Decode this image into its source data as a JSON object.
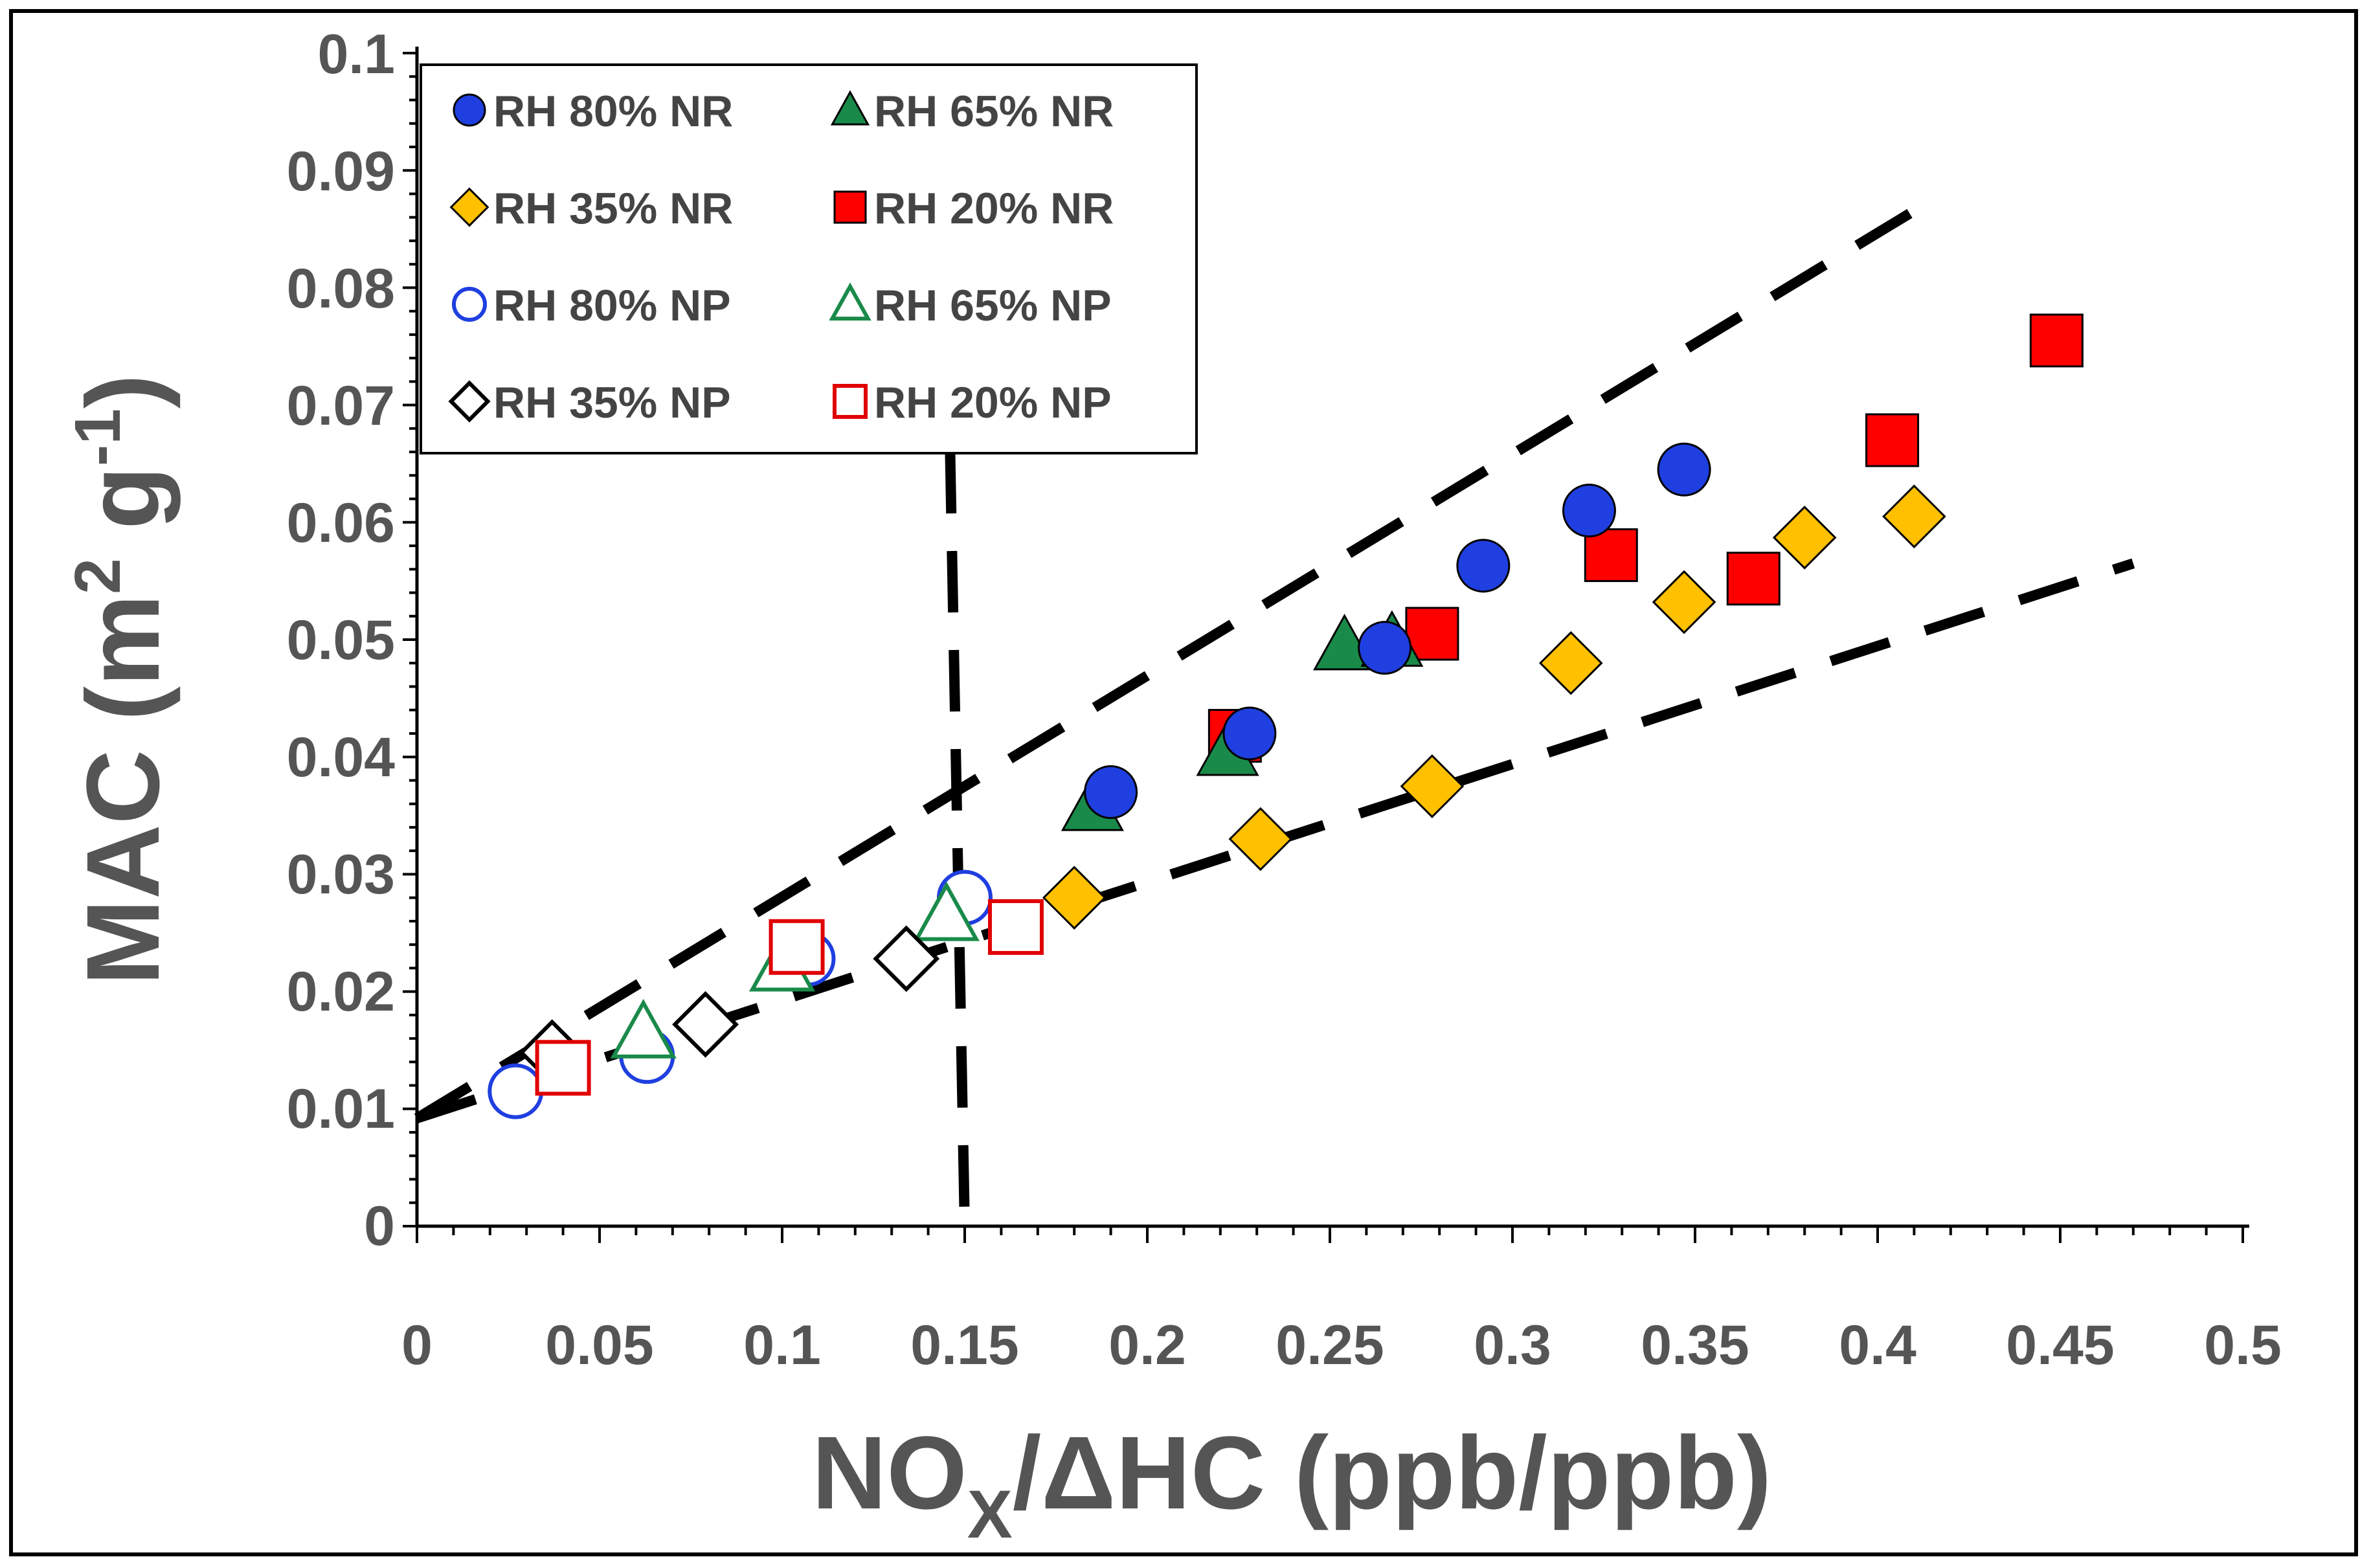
{
  "chart_data": {
    "type": "scatter",
    "title": "",
    "xlabel": "NOX/ΔHC  (ppb/ppb)",
    "xlabel_parts": {
      "main": "NO",
      "sub": "X",
      "rest": "/ΔHC  (ppb/ppb)"
    },
    "ylabel": "MAC (m2 g-1)",
    "ylabel_parts": {
      "main": "MAC (m",
      "sup1": "2",
      "mid": " g",
      "sup2": "-1",
      "end": ")"
    },
    "xlim": [
      0,
      0.5
    ],
    "ylim": [
      0,
      0.1
    ],
    "x_ticks": [
      "0",
      "0.05",
      "0.1",
      "0.15",
      "0.2",
      "0.25",
      "0.3",
      "0.35",
      "0.4",
      "0.45",
      "0.5"
    ],
    "y_ticks": [
      "0",
      "0.01",
      "0.02",
      "0.03",
      "0.04",
      "0.05",
      "0.06",
      "0.07",
      "0.08",
      "0.09",
      "0.1"
    ],
    "legend_position": "top-left",
    "series": [
      {
        "name": "RH 80% NR",
        "marker": "circle",
        "filled": true,
        "color": "#1f3fe0",
        "points": [
          [
            0.19,
            0.037
          ],
          [
            0.228,
            0.042
          ],
          [
            0.265,
            0.0493
          ],
          [
            0.292,
            0.0563
          ],
          [
            0.321,
            0.061
          ],
          [
            0.347,
            0.0645
          ]
        ]
      },
      {
        "name": "RH 65% NR",
        "marker": "triangle",
        "filled": true,
        "color": "#1a8a4a",
        "points": [
          [
            0.185,
            0.0358
          ],
          [
            0.222,
            0.0405
          ],
          [
            0.254,
            0.0495
          ],
          [
            0.267,
            0.0498
          ]
        ]
      },
      {
        "name": "RH 35% NR",
        "marker": "diamond",
        "filled": true,
        "color": "#ffc000",
        "points": [
          [
            0.18,
            0.028
          ],
          [
            0.231,
            0.033
          ],
          [
            0.278,
            0.0375
          ],
          [
            0.316,
            0.048
          ],
          [
            0.347,
            0.0532
          ],
          [
            0.38,
            0.0587
          ],
          [
            0.41,
            0.0605
          ]
        ]
      },
      {
        "name": "RH 20% NR",
        "marker": "square",
        "filled": true,
        "color": "#ff0000",
        "points": [
          [
            0.224,
            0.0418
          ],
          [
            0.278,
            0.0505
          ],
          [
            0.327,
            0.0572
          ],
          [
            0.366,
            0.0552
          ],
          [
            0.404,
            0.067
          ],
          [
            0.449,
            0.0755
          ]
        ]
      },
      {
        "name": "RH 80% NP",
        "marker": "circle",
        "filled": false,
        "color": "#1f3fe0",
        "points": [
          [
            0.027,
            0.0115
          ],
          [
            0.063,
            0.0145
          ],
          [
            0.107,
            0.0228
          ],
          [
            0.15,
            0.028
          ]
        ]
      },
      {
        "name": "RH 65% NP",
        "marker": "triangle",
        "filled": false,
        "color": "#1a8a4a",
        "points": [
          [
            0.062,
            0.0165
          ],
          [
            0.1,
            0.0222
          ],
          [
            0.145,
            0.0265
          ]
        ]
      },
      {
        "name": "RH 35% NP",
        "marker": "diamond",
        "filled": false,
        "color": "#000000",
        "points": [
          [
            0.037,
            0.0148
          ],
          [
            0.079,
            0.0172
          ],
          [
            0.134,
            0.0228
          ]
        ]
      },
      {
        "name": "RH 20% NP",
        "marker": "square",
        "filled": false,
        "color": "#e00000",
        "points": [
          [
            0.04,
            0.0135
          ],
          [
            0.104,
            0.0238
          ],
          [
            0.164,
            0.0255
          ]
        ]
      }
    ],
    "reference_lines": [
      {
        "name": "upper-trend-line",
        "from": [
          0.0,
          0.0092
        ],
        "to": [
          0.415,
          0.0875
        ]
      },
      {
        "name": "lower-trend-line",
        "from": [
          0.0,
          0.0092
        ],
        "to": [
          0.47,
          0.0565
        ]
      },
      {
        "name": "vertical-threshold-line",
        "from": [
          0.146,
          0.066
        ],
        "to": [
          0.15,
          0.0
        ]
      }
    ]
  }
}
